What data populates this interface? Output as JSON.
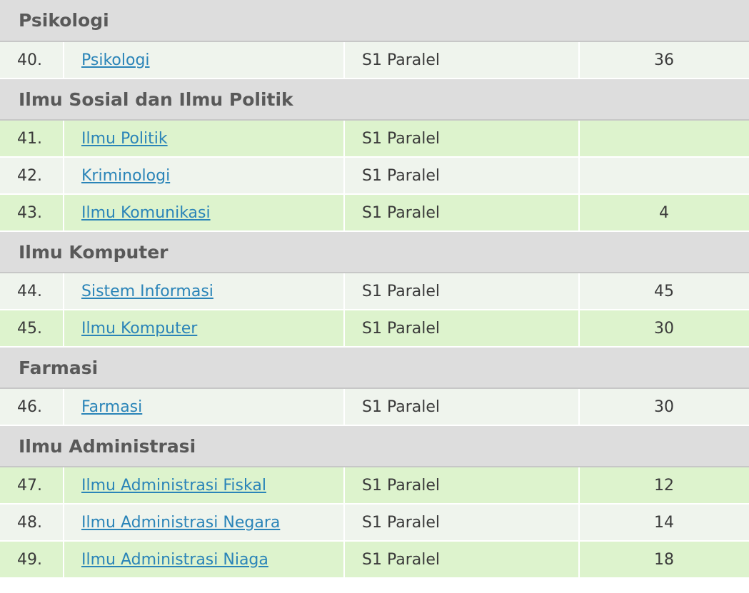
{
  "groups": [
    {
      "title": "Psikologi",
      "rows": [
        {
          "no": "40.",
          "name": "Psikologi",
          "type": "S1 Paralel",
          "quota": "36",
          "shade": "light"
        }
      ]
    },
    {
      "title": "Ilmu Sosial dan Ilmu Politik",
      "rows": [
        {
          "no": "41.",
          "name": "Ilmu Politik",
          "type": "S1 Paralel",
          "quota": "",
          "shade": "green"
        },
        {
          "no": "42.",
          "name": "Kriminologi",
          "type": "S1 Paralel",
          "quota": "",
          "shade": "light"
        },
        {
          "no": "43.",
          "name": "Ilmu Komunikasi",
          "type": "S1 Paralel",
          "quota": "4",
          "shade": "green"
        }
      ]
    },
    {
      "title": "Ilmu Komputer",
      "rows": [
        {
          "no": "44.",
          "name": "Sistem Informasi",
          "type": "S1 Paralel",
          "quota": "45",
          "shade": "light"
        },
        {
          "no": "45.",
          "name": "Ilmu Komputer",
          "type": "S1 Paralel",
          "quota": "30",
          "shade": "green"
        }
      ]
    },
    {
      "title": "Farmasi",
      "rows": [
        {
          "no": "46.",
          "name": "Farmasi",
          "type": "S1 Paralel",
          "quota": "30",
          "shade": "light"
        }
      ]
    },
    {
      "title": "Ilmu Administrasi",
      "rows": [
        {
          "no": "47.",
          "name": "Ilmu Administrasi Fiskal",
          "type": "S1 Paralel",
          "quota": "12",
          "shade": "green"
        },
        {
          "no": "48.",
          "name": "Ilmu Administrasi Negara",
          "type": "S1 Paralel",
          "quota": "14",
          "shade": "light"
        },
        {
          "no": "49.",
          "name": "Ilmu Administrasi Niaga",
          "type": "S1 Paralel",
          "quota": "18",
          "shade": "green"
        }
      ]
    }
  ]
}
